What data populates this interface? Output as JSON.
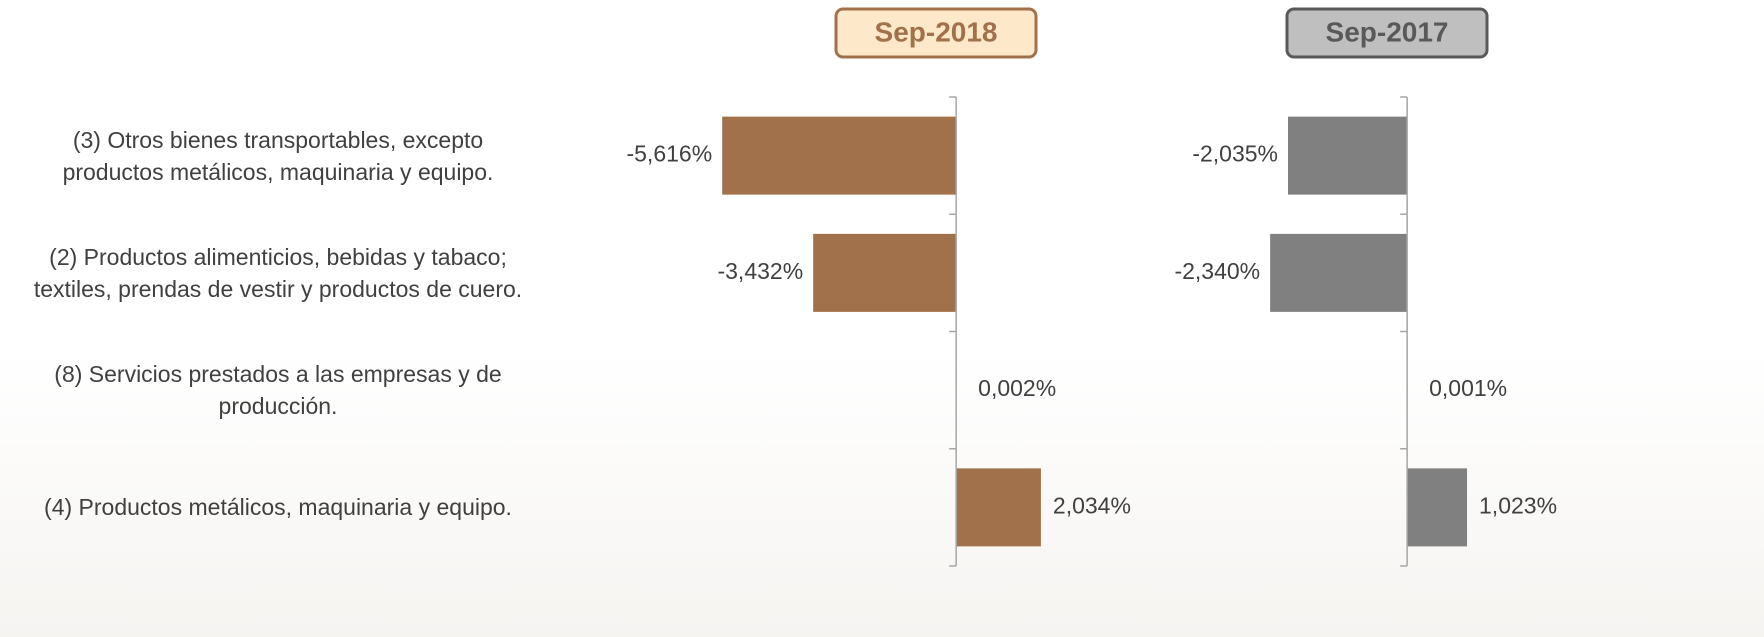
{
  "chart_data": [
    {
      "type": "barh",
      "title": "Sep-2018",
      "categories": [
        "(3) Otros bienes transportables, excepto\nproductos metálicos, maquinaria y equipo.",
        "(2) Productos alimenticios, bebidas y tabaco;\ntextiles, prendas de vestir y productos de cuero.",
        "(8) Servicios prestados a las empresas y de\nproducción.",
        "(4) Productos metálicos, maquinaria y equipo."
      ],
      "values": [
        -5.616,
        -3.432,
        0.002,
        2.034
      ],
      "value_labels": [
        "-5,616%",
        "-3,432%",
        "0,002%",
        "2,034%"
      ],
      "color": "#a0714a",
      "xlim": [
        -8.5,
        3.5
      ]
    },
    {
      "type": "barh",
      "title": "Sep-2017",
      "values": [
        -2.035,
        -2.34,
        0.001,
        1.023
      ],
      "value_labels": [
        "-2,035%",
        "-2,340%",
        "0,001%",
        "1,023%"
      ],
      "color": "#808080",
      "xlim": [
        -3,
        2.5
      ]
    }
  ]
}
